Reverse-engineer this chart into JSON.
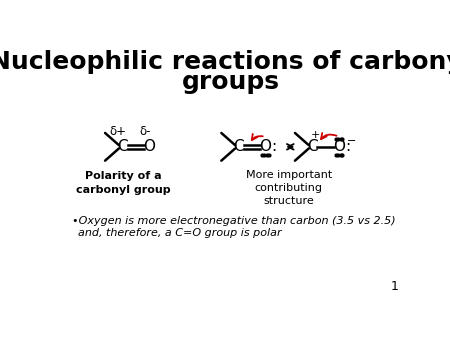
{
  "title_line1": "Nucleophilic reactions of carbonyl",
  "title_line2": "groups",
  "bg_color": "#ffffff",
  "slide_number": "1",
  "bullet_text_line1": "•Oxygen is more electronegative than carbon (3.5 vs 2.5)",
  "bullet_text_line2": "and, therefore, a C=O group is polar",
  "label1": "Polarity of a\ncarbonyl group",
  "label2": "More important\ncontributing\nstructure",
  "font_color": "#000000",
  "red_color": "#cc0000",
  "title_fontsize": 18,
  "body_fontsize": 8,
  "label_fontsize": 8,
  "struct_fontsize": 11,
  "bullet_fontsize": 8
}
